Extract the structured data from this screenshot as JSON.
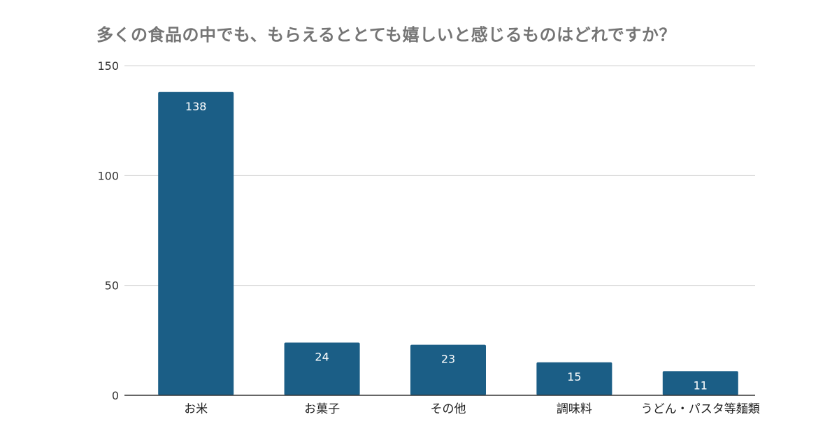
{
  "chart_data": {
    "type": "bar",
    "title": "多くの食品の中でも、もらえるととても嬉しいと感じるものはどれですか？",
    "xlabel": "",
    "ylabel": "",
    "categories": [
      "お米",
      "お菓子",
      "その他",
      "調味料",
      "うどん・パスタ等麺類"
    ],
    "values": [
      138,
      24,
      23,
      15,
      11
    ],
    "ylim": [
      0,
      150
    ],
    "yticks": [
      0,
      50,
      100,
      150
    ],
    "grid": true,
    "data_labels": true,
    "legend": "none",
    "colors": {
      "bar": "#1b5e86",
      "grid": "#d0d0d0",
      "axis": "#333333",
      "title": "#757575"
    }
  }
}
